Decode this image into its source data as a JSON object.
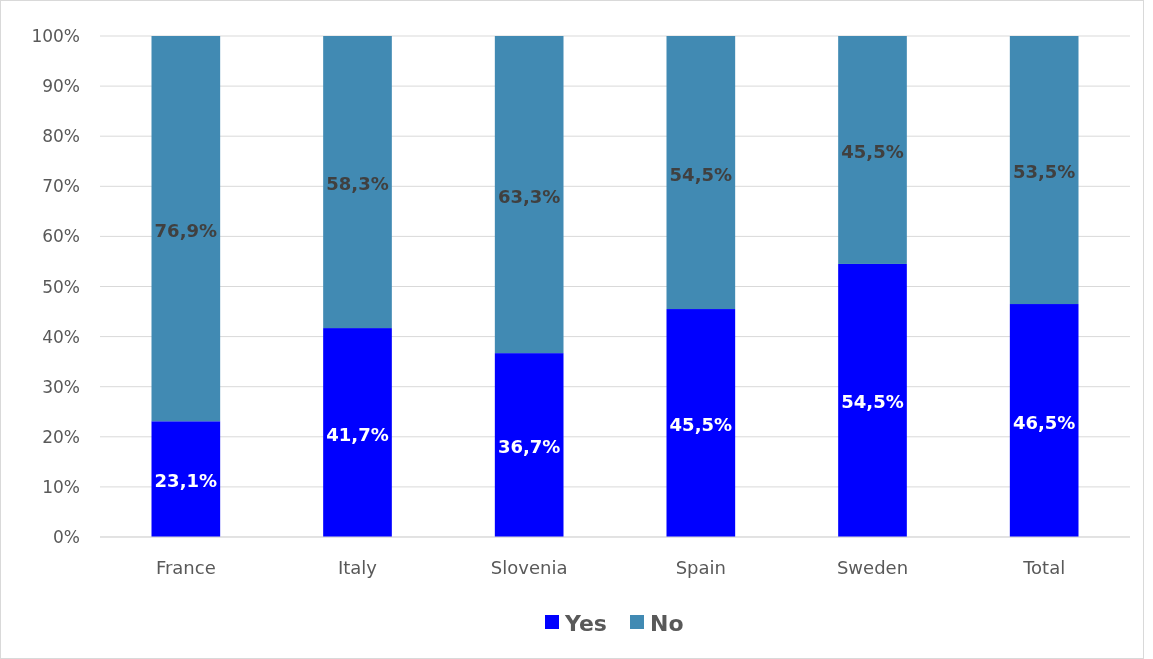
{
  "chart_data": {
    "type": "bar",
    "stacked": true,
    "categories": [
      "France",
      "Italy",
      "Slovenia",
      "Spain",
      "Sweden",
      "Total"
    ],
    "series": [
      {
        "name": "Yes",
        "color": "#0000ff",
        "values": [
          23.1,
          41.7,
          36.7,
          45.5,
          54.5,
          46.5
        ],
        "value_labels": [
          "23,1%",
          "41,7%",
          "36,7%",
          "45,5%",
          "54,5%",
          "46,5%"
        ]
      },
      {
        "name": "No",
        "color": "#418ab3",
        "values": [
          76.9,
          58.3,
          63.3,
          54.5,
          45.5,
          53.5
        ],
        "value_labels": [
          "76,9%",
          "58,3%",
          "63,3%",
          "54,5%",
          "45,5%",
          "53,5%"
        ]
      }
    ],
    "ylim": [
      0,
      100
    ],
    "yticks": [
      {
        "value": 0,
        "label": "0%"
      },
      {
        "value": 10,
        "label": "10%"
      },
      {
        "value": 20,
        "label": "20%"
      },
      {
        "value": 30,
        "label": "30%"
      },
      {
        "value": 40,
        "label": "40%"
      },
      {
        "value": 50,
        "label": "50%"
      },
      {
        "value": 60,
        "label": "60%"
      },
      {
        "value": 70,
        "label": "70%"
      },
      {
        "value": 80,
        "label": "80%"
      },
      {
        "value": 90,
        "label": "90%"
      },
      {
        "value": 100,
        "label": "100%"
      }
    ],
    "grid": "y",
    "legend": "bottom"
  }
}
